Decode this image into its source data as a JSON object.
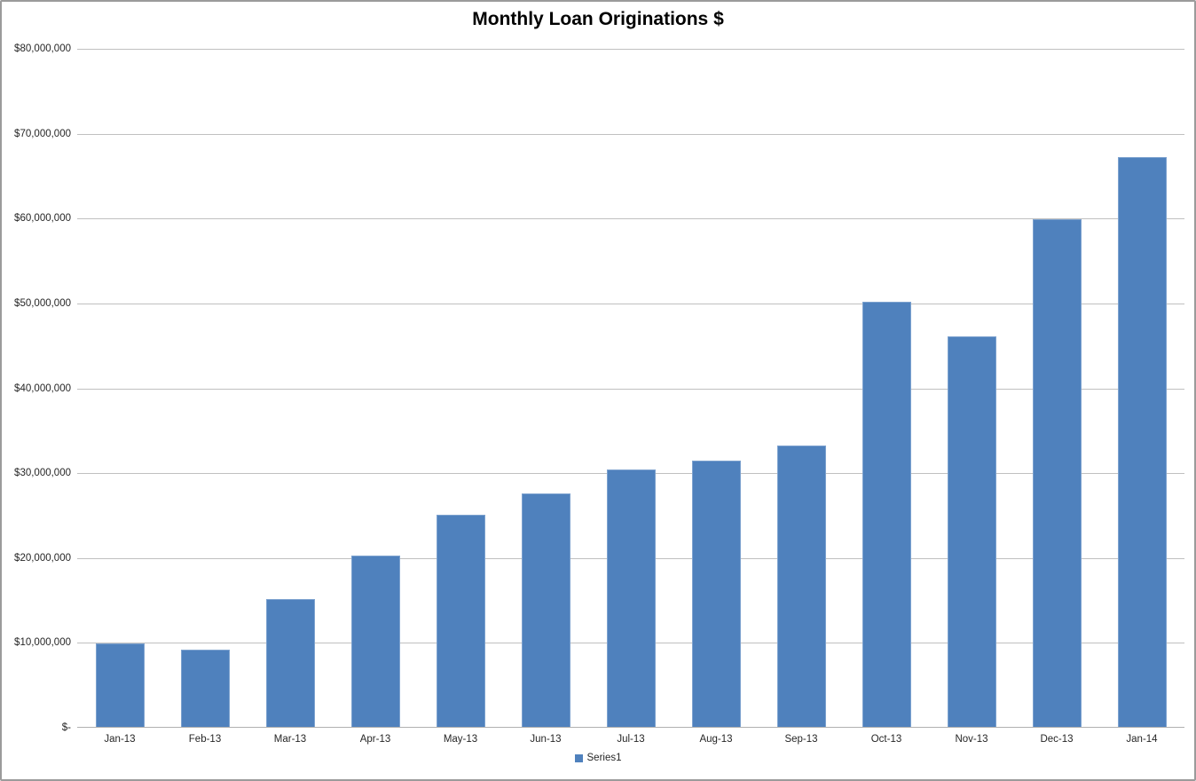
{
  "chart_data": {
    "type": "bar",
    "title": "Monthly Loan Originations $",
    "categories": [
      "Jan-13",
      "Feb-13",
      "Mar-13",
      "Apr-13",
      "May-13",
      "Jun-13",
      "Jul-13",
      "Aug-13",
      "Sep-13",
      "Oct-13",
      "Nov-13",
      "Dec-13",
      "Jan-14"
    ],
    "series": [
      {
        "name": "Series1",
        "values": [
          9800000,
          9100000,
          15100000,
          20200000,
          25000000,
          27500000,
          30300000,
          31400000,
          33100000,
          50100000,
          46000000,
          59800000,
          67100000
        ]
      }
    ],
    "xlabel": "",
    "ylabel": "",
    "ylim": [
      0,
      80000000
    ],
    "ytick_step": 10000000,
    "ytick_labels": [
      "$-",
      "$10,000,000",
      "$20,000,000",
      "$30,000,000",
      "$40,000,000",
      "$50,000,000",
      "$60,000,000",
      "$70,000,000",
      "$80,000,000"
    ],
    "grid": true,
    "legend_position": "bottom-center",
    "legend_entries": [
      "Series1"
    ]
  },
  "colors": {
    "bar_fill": "#4F81BD",
    "bar_edge": "#7DA2CF",
    "gridline": "#C0C0C0",
    "axis_line": "#B0B0B0",
    "frame_border": "#9B9B9B",
    "text": "#262626",
    "title_text": "#000000",
    "background": "#FFFFFF"
  }
}
